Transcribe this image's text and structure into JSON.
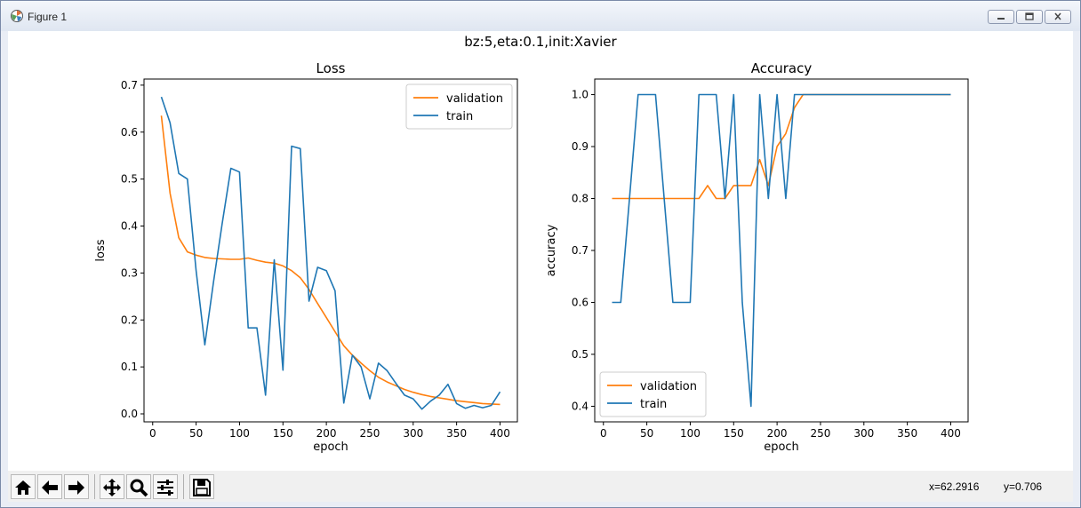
{
  "window": {
    "title": "Figure 1",
    "icon": "matplotlib-icon",
    "controls": [
      "minimize-icon",
      "maximize-icon",
      "close-icon"
    ]
  },
  "figure": {
    "suptitle": "bz:5,eta:0.1,init:Xavier"
  },
  "toolbar": {
    "buttons": [
      "home-icon",
      "back-icon",
      "forward-icon",
      "pan-icon",
      "zoom-icon",
      "configure-subplots-icon",
      "save-icon"
    ],
    "coord_x": "x=62.2916",
    "coord_y": "y=0.706"
  },
  "chart_data": [
    {
      "type": "line",
      "title": "Loss",
      "xlabel": "epoch",
      "ylabel": "loss",
      "xlim": [
        -10,
        420
      ],
      "ylim": [
        -0.017,
        0.713
      ],
      "xticks": [
        0,
        50,
        100,
        150,
        200,
        250,
        300,
        350,
        400
      ],
      "yticks": [
        0.0,
        0.1,
        0.2,
        0.3,
        0.4,
        0.5,
        0.6,
        0.7
      ],
      "ytick_labels": [
        "0.0",
        "0.1",
        "0.2",
        "0.3",
        "0.4",
        "0.5",
        "0.6",
        "0.7"
      ],
      "legend_position": "top-right",
      "series": [
        {
          "name": "validation",
          "color": "#ff7f0e",
          "x": [
            10,
            20,
            30,
            40,
            50,
            60,
            70,
            80,
            90,
            100,
            110,
            120,
            130,
            140,
            150,
            160,
            170,
            180,
            190,
            200,
            210,
            220,
            230,
            240,
            250,
            260,
            270,
            280,
            290,
            300,
            310,
            320,
            330,
            340,
            350,
            360,
            370,
            380,
            390,
            400
          ],
          "y": [
            0.635,
            0.47,
            0.375,
            0.345,
            0.338,
            0.333,
            0.331,
            0.33,
            0.329,
            0.329,
            0.332,
            0.327,
            0.323,
            0.321,
            0.315,
            0.305,
            0.29,
            0.265,
            0.235,
            0.205,
            0.175,
            0.145,
            0.125,
            0.108,
            0.092,
            0.078,
            0.068,
            0.06,
            0.052,
            0.046,
            0.041,
            0.037,
            0.034,
            0.031,
            0.028,
            0.026,
            0.024,
            0.022,
            0.021,
            0.02
          ]
        },
        {
          "name": "train",
          "color": "#1f77b4",
          "x": [
            10,
            20,
            30,
            40,
            50,
            60,
            70,
            80,
            90,
            100,
            110,
            120,
            130,
            140,
            150,
            160,
            170,
            180,
            190,
            200,
            210,
            220,
            230,
            240,
            250,
            260,
            270,
            280,
            290,
            300,
            310,
            320,
            330,
            340,
            350,
            360,
            370,
            380,
            390,
            400
          ],
          "y": [
            0.675,
            0.62,
            0.512,
            0.5,
            0.305,
            0.147,
            0.28,
            0.405,
            0.523,
            0.515,
            0.183,
            0.183,
            0.04,
            0.328,
            0.093,
            0.57,
            0.565,
            0.24,
            0.312,
            0.305,
            0.262,
            0.023,
            0.125,
            0.1,
            0.032,
            0.108,
            0.092,
            0.065,
            0.04,
            0.032,
            0.01,
            0.027,
            0.04,
            0.063,
            0.022,
            0.012,
            0.018,
            0.013,
            0.018,
            0.047
          ]
        }
      ]
    },
    {
      "type": "line",
      "title": "Accuracy",
      "xlabel": "epoch",
      "ylabel": "accuracy",
      "xlim": [
        -10,
        420
      ],
      "ylim": [
        0.37,
        1.03
      ],
      "xticks": [
        0,
        50,
        100,
        150,
        200,
        250,
        300,
        350,
        400
      ],
      "yticks": [
        0.4,
        0.5,
        0.6,
        0.7,
        0.8,
        0.9,
        1.0
      ],
      "ytick_labels": [
        "0.4",
        "0.5",
        "0.6",
        "0.7",
        "0.8",
        "0.9",
        "1.0"
      ],
      "legend_position": "bottom-left",
      "series": [
        {
          "name": "validation",
          "color": "#ff7f0e",
          "x": [
            10,
            20,
            30,
            40,
            50,
            60,
            70,
            80,
            90,
            100,
            110,
            120,
            130,
            140,
            150,
            160,
            170,
            180,
            190,
            200,
            210,
            220,
            230,
            240,
            250,
            260,
            270,
            280,
            290,
            300,
            310,
            320,
            330,
            340,
            350,
            360,
            370,
            380,
            390,
            400
          ],
          "y": [
            0.8,
            0.8,
            0.8,
            0.8,
            0.8,
            0.8,
            0.8,
            0.8,
            0.8,
            0.8,
            0.8,
            0.825,
            0.8,
            0.8,
            0.825,
            0.825,
            0.825,
            0.875,
            0.825,
            0.9,
            0.925,
            0.975,
            1.0,
            1.0,
            1.0,
            1.0,
            1.0,
            1.0,
            1.0,
            1.0,
            1.0,
            1.0,
            1.0,
            1.0,
            1.0,
            1.0,
            1.0,
            1.0,
            1.0,
            1.0
          ]
        },
        {
          "name": "train",
          "color": "#1f77b4",
          "x": [
            10,
            20,
            30,
            40,
            50,
            60,
            70,
            80,
            90,
            100,
            110,
            120,
            130,
            140,
            150,
            160,
            170,
            180,
            190,
            200,
            210,
            220,
            230,
            240,
            250,
            260,
            270,
            280,
            290,
            300,
            310,
            320,
            330,
            340,
            350,
            360,
            370,
            380,
            390,
            400
          ],
          "y": [
            0.6,
            0.6,
            0.8,
            1.0,
            1.0,
            1.0,
            0.8,
            0.6,
            0.6,
            0.6,
            1.0,
            1.0,
            1.0,
            0.8,
            1.0,
            0.6,
            0.4,
            1.0,
            0.8,
            1.0,
            0.8,
            1.0,
            1.0,
            1.0,
            1.0,
            1.0,
            1.0,
            1.0,
            1.0,
            1.0,
            1.0,
            1.0,
            1.0,
            1.0,
            1.0,
            1.0,
            1.0,
            1.0,
            1.0,
            1.0
          ]
        }
      ]
    }
  ]
}
